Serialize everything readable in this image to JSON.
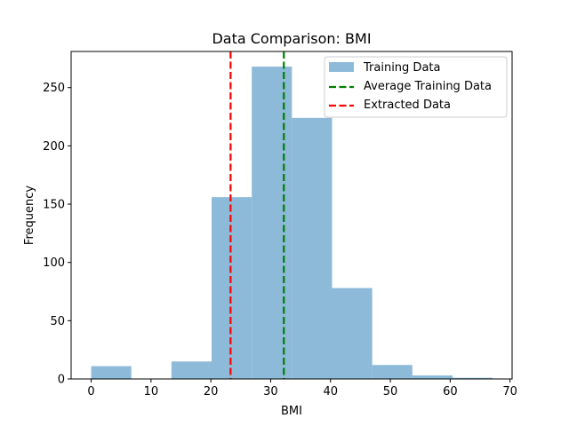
{
  "chart_data": {
    "type": "bar",
    "subtype": "histogram",
    "title": "Data Comparison: BMI",
    "xlabel": "BMI",
    "ylabel": "Frequency",
    "xlim": [
      -3.35,
      70.35
    ],
    "ylim": [
      0,
      281
    ],
    "xticks": [
      0,
      10,
      20,
      30,
      40,
      50,
      60,
      70
    ],
    "yticks": [
      0,
      50,
      100,
      150,
      200,
      250
    ],
    "grid": false,
    "legend_position": "top-right",
    "bins": [
      {
        "x0": 0.0,
        "x1": 6.71,
        "count": 11
      },
      {
        "x0": 6.71,
        "x1": 13.42,
        "count": 0
      },
      {
        "x0": 13.42,
        "x1": 20.13,
        "count": 15
      },
      {
        "x0": 20.13,
        "x1": 26.84,
        "count": 156
      },
      {
        "x0": 26.84,
        "x1": 33.55,
        "count": 268
      },
      {
        "x0": 33.55,
        "x1": 40.26,
        "count": 224
      },
      {
        "x0": 40.26,
        "x1": 46.97,
        "count": 78
      },
      {
        "x0": 46.97,
        "x1": 53.68,
        "count": 12
      },
      {
        "x0": 53.68,
        "x1": 60.39,
        "count": 3
      },
      {
        "x0": 60.39,
        "x1": 67.1,
        "count": 1
      }
    ],
    "series": [
      {
        "name": "Training Data",
        "kind": "histogram",
        "color": "#8dbad9"
      },
      {
        "name": "Average Training Data",
        "kind": "vline",
        "x": 32.2,
        "color": "#008000",
        "style": "dashed"
      },
      {
        "name": "Extracted Data",
        "kind": "vline",
        "x": 23.3,
        "color": "#ff0000",
        "style": "dashed"
      }
    ]
  }
}
